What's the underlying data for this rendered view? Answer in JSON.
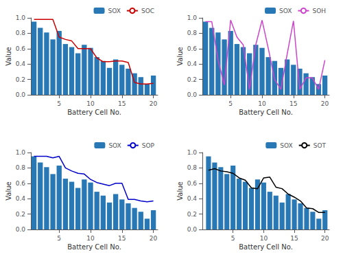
{
  "chart_data": [
    {
      "type": "bar",
      "xlabel": "Battery Cell No.",
      "ylabel": "Value",
      "x": [
        1,
        2,
        3,
        4,
        5,
        6,
        7,
        8,
        9,
        10,
        11,
        12,
        13,
        14,
        15,
        16,
        17,
        18,
        19,
        20
      ],
      "series": [
        {
          "name": "SOX",
          "type": "bar",
          "color": "#2878b5",
          "values": [
            0.95,
            0.87,
            0.81,
            0.72,
            0.83,
            0.66,
            0.62,
            0.54,
            0.65,
            0.61,
            0.49,
            0.44,
            0.35,
            0.46,
            0.39,
            0.34,
            0.28,
            0.23,
            0.14,
            0.25
          ]
        },
        {
          "name": "SOC",
          "type": "line",
          "color": "#cc0000",
          "values": [
            0.98,
            0.98,
            0.98,
            0.98,
            0.75,
            0.72,
            0.7,
            0.6,
            0.6,
            0.6,
            0.48,
            0.43,
            0.43,
            0.44,
            0.44,
            0.42,
            0.16,
            0.14,
            0.14,
            0.15
          ]
        }
      ],
      "xlim": [
        0.5,
        20.7
      ],
      "xticks": [
        5,
        10,
        15,
        20
      ],
      "ylim": [
        0,
        1.0
      ],
      "yticks": [
        {
          "value": 0,
          "label": "0.0"
        },
        0.2,
        0.4,
        0.6,
        0.8,
        {
          "value": 1.0,
          "label": "1.0"
        }
      ],
      "grid": false,
      "legend": "upper right"
    },
    {
      "type": "bar",
      "xlabel": "Battery Cell No.",
      "ylabel": "Value",
      "x": [
        1,
        2,
        3,
        4,
        5,
        6,
        7,
        8,
        9,
        10,
        11,
        12,
        13,
        14,
        15,
        16,
        17,
        18,
        19,
        20
      ],
      "series": [
        {
          "name": "SOX",
          "type": "bar",
          "color": "#2878b5",
          "values": [
            0.95,
            0.87,
            0.81,
            0.72,
            0.83,
            0.66,
            0.62,
            0.54,
            0.65,
            0.61,
            0.49,
            0.44,
            0.35,
            0.46,
            0.39,
            0.34,
            0.28,
            0.23,
            0.14,
            0.25
          ]
        },
        {
          "name": "SOH",
          "type": "line",
          "color": "#cc44cc",
          "values": [
            0.95,
            0.95,
            0.45,
            0.13,
            0.97,
            0.75,
            0.65,
            0.07,
            0.65,
            0.97,
            0.6,
            0.2,
            0.07,
            0.53,
            0.96,
            0.07,
            0.22,
            0.22,
            0.07,
            0.45
          ]
        }
      ],
      "xlim": [
        0.5,
        20.7
      ],
      "xticks": [
        5,
        10,
        15,
        20
      ],
      "ylim": [
        0,
        1.0
      ],
      "yticks": [
        {
          "value": 0,
          "label": "0.0"
        },
        0.2,
        0.4,
        0.6,
        0.8,
        {
          "value": 1.0,
          "label": "1.0"
        }
      ],
      "grid": false,
      "legend": "upper right"
    },
    {
      "type": "bar",
      "xlabel": "Battery Cell No.",
      "ylabel": "Value",
      "x": [
        1,
        2,
        3,
        4,
        5,
        6,
        7,
        8,
        9,
        10,
        11,
        12,
        13,
        14,
        15,
        16,
        17,
        18,
        19,
        20
      ],
      "series": [
        {
          "name": "SOX",
          "type": "bar",
          "color": "#2878b5",
          "values": [
            0.95,
            0.87,
            0.81,
            0.72,
            0.83,
            0.66,
            0.62,
            0.54,
            0.65,
            0.61,
            0.49,
            0.44,
            0.35,
            0.46,
            0.39,
            0.34,
            0.28,
            0.23,
            0.14,
            0.25
          ]
        },
        {
          "name": "SOP",
          "type": "line",
          "color": "#0000cc",
          "values": [
            0.95,
            0.95,
            0.95,
            0.93,
            0.95,
            0.8,
            0.76,
            0.73,
            0.72,
            0.65,
            0.61,
            0.59,
            0.57,
            0.6,
            0.6,
            0.39,
            0.39,
            0.37,
            0.36,
            0.37
          ]
        }
      ],
      "xlim": [
        0.5,
        20.7
      ],
      "xticks": [
        5,
        10,
        15,
        20
      ],
      "ylim": [
        0,
        1.0
      ],
      "yticks": [
        {
          "value": 0,
          "label": "0.0"
        },
        0.2,
        0.4,
        0.6,
        0.8,
        {
          "value": 1.0,
          "label": "1.0"
        }
      ],
      "grid": false,
      "legend": "upper right"
    },
    {
      "type": "bar",
      "xlabel": "Battery Cell No.",
      "ylabel": "Value",
      "x": [
        1,
        2,
        3,
        4,
        5,
        6,
        7,
        8,
        9,
        10,
        11,
        12,
        13,
        14,
        15,
        16,
        17,
        18,
        19,
        20
      ],
      "series": [
        {
          "name": "SOX",
          "type": "bar",
          "color": "#2878b5",
          "values": [
            0.95,
            0.87,
            0.81,
            0.72,
            0.83,
            0.66,
            0.62,
            0.54,
            0.65,
            0.61,
            0.49,
            0.44,
            0.35,
            0.46,
            0.39,
            0.34,
            0.28,
            0.23,
            0.14,
            0.25
          ]
        },
        {
          "name": "SOT",
          "type": "line",
          "color": "#000000",
          "values": [
            0.77,
            0.79,
            0.76,
            0.75,
            0.73,
            0.67,
            0.64,
            0.54,
            0.53,
            0.67,
            0.68,
            0.55,
            0.53,
            0.46,
            0.42,
            0.37,
            0.28,
            0.27,
            0.22,
            0.22
          ]
        }
      ],
      "xlim": [
        0,
        20.7
      ],
      "xticks": [
        5,
        10,
        15,
        20
      ],
      "ylim": [
        0,
        1.0
      ],
      "yticks": [
        {
          "value": 0,
          "label": "0.0"
        },
        0.2,
        0.4,
        0.6,
        0.8,
        {
          "value": 1.0,
          "label": "1.0"
        }
      ],
      "grid": false,
      "legend": "upper right"
    }
  ]
}
